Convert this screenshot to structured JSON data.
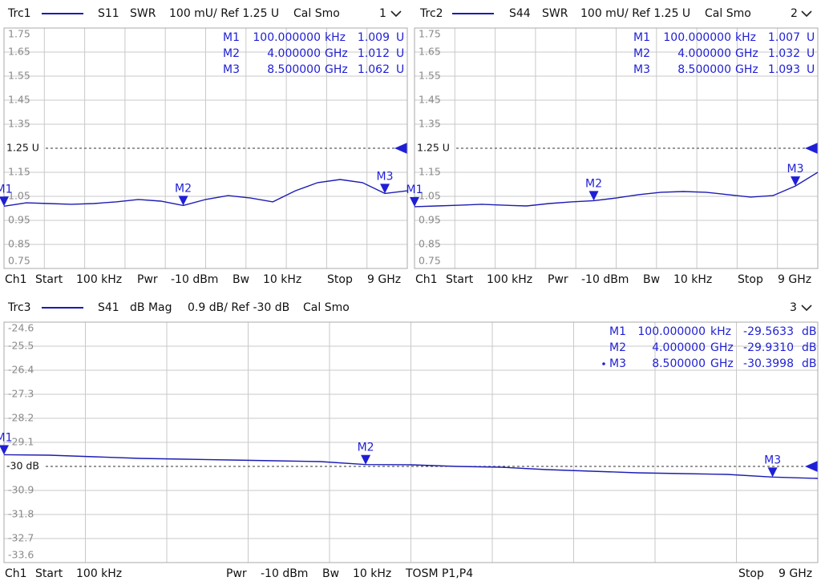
{
  "chart_data": [
    {
      "type": "line",
      "trace": "Trc1",
      "parameter": "S11",
      "format": "SWR",
      "scale": "100 mU/ Ref 1.25 U",
      "calibration": "Cal Smo",
      "window": "1",
      "color": "#1c1cb4",
      "grid": true,
      "x": [
        0.0001,
        0.5,
        1,
        1.5,
        2,
        2.5,
        3,
        3.5,
        4,
        4.5,
        5,
        5.5,
        6,
        6.5,
        7,
        7.5,
        8,
        8.5,
        9
      ],
      "values": [
        1.009,
        1.023,
        1.02,
        1.017,
        1.02,
        1.027,
        1.037,
        1.03,
        1.012,
        1.037,
        1.053,
        1.043,
        1.027,
        1.073,
        1.107,
        1.12,
        1.107,
        1.062,
        1.073
      ],
      "xlim": [
        0.0001,
        9
      ],
      "xticks": [
        0.0001,
        0.9,
        1.8,
        2.7,
        3.6,
        4.5,
        5.4,
        6.3,
        7.2,
        8.1,
        9
      ],
      "ylim": [
        0.75,
        1.75
      ],
      "yticks": [
        0.75,
        0.85,
        0.95,
        1.05,
        1.15,
        {
          "value": 1.25,
          "label": "1.25 U"
        },
        1.35,
        1.45,
        1.55,
        1.65,
        1.75
      ],
      "markers": [
        {
          "name": "M1",
          "x": 0.0001,
          "value": 1.009,
          "stimulus_label": "100.000000",
          "stimulus_unit": "kHz",
          "value_label": "1.009",
          "value_unit": "U"
        },
        {
          "name": "M2",
          "x": 4,
          "value": 1.012,
          "stimulus_label": "4.000000",
          "stimulus_unit": "GHz",
          "value_label": "1.012",
          "value_unit": "U"
        },
        {
          "name": "M3",
          "x": 8.5,
          "value": 1.062,
          "stimulus_label": "8.500000",
          "stimulus_unit": "GHz",
          "value_label": "1.062",
          "value_unit": "U"
        }
      ],
      "footer": [
        "Ch1",
        "Start",
        "100 kHz",
        "Pwr",
        "-10 dBm",
        "Bw",
        "10 kHz",
        "Stop",
        "9 GHz"
      ]
    },
    {
      "type": "line",
      "trace": "Trc2",
      "parameter": "S44",
      "format": "SWR",
      "scale": "100 mU/ Ref 1.25 U",
      "calibration": "Cal Smo",
      "window": "2",
      "color": "#1c1cb4",
      "grid": true,
      "x": [
        0.0001,
        0.5,
        1,
        1.5,
        2,
        2.5,
        3,
        3.5,
        4,
        4.5,
        5,
        5.5,
        6,
        6.5,
        7,
        7.5,
        8,
        8.5,
        9
      ],
      "values": [
        1.007,
        1.01,
        1.013,
        1.017,
        1.013,
        1.01,
        1.02,
        1.027,
        1.032,
        1.043,
        1.057,
        1.067,
        1.07,
        1.067,
        1.057,
        1.047,
        1.053,
        1.093,
        1.15
      ],
      "xlim": [
        0.0001,
        9
      ],
      "xticks": [
        0.0001,
        0.9,
        1.8,
        2.7,
        3.6,
        4.5,
        5.4,
        6.3,
        7.2,
        8.1,
        9
      ],
      "ylim": [
        0.75,
        1.75
      ],
      "yticks": [
        0.75,
        0.85,
        0.95,
        1.05,
        1.15,
        {
          "value": 1.25,
          "label": "1.25 U"
        },
        1.35,
        1.45,
        1.55,
        1.65,
        1.75
      ],
      "markers": [
        {
          "name": "M1",
          "x": 0.0001,
          "value": 1.007,
          "stimulus_label": "100.000000",
          "stimulus_unit": "kHz",
          "value_label": "1.007",
          "value_unit": "U"
        },
        {
          "name": "M2",
          "x": 4,
          "value": 1.032,
          "stimulus_label": "4.000000",
          "stimulus_unit": "GHz",
          "value_label": "1.032",
          "value_unit": "U"
        },
        {
          "name": "M3",
          "x": 8.5,
          "value": 1.093,
          "stimulus_label": "8.500000",
          "stimulus_unit": "GHz",
          "value_label": "1.093",
          "value_unit": "U"
        }
      ],
      "footer": [
        "Ch1",
        "Start",
        "100 kHz",
        "Pwr",
        "-10 dBm",
        "Bw",
        "10 kHz",
        "Stop",
        "9 GHz"
      ]
    },
    {
      "type": "line",
      "trace": "Trc3",
      "parameter": "S41",
      "format": "dB Mag",
      "scale": "0.9 dB/ Ref -30 dB",
      "calibration": "Cal Smo",
      "window": "3",
      "color": "#1c1cb4",
      "grid": true,
      "x": [
        0.0001,
        0.5,
        1,
        1.5,
        2,
        2.5,
        3,
        3.5,
        4,
        4.5,
        5,
        5.5,
        6,
        6.5,
        7,
        7.5,
        8,
        8.5,
        9
      ],
      "values": [
        -29.5633,
        -29.58,
        -29.64,
        -29.7,
        -29.73,
        -29.76,
        -29.79,
        -29.82,
        -29.931,
        -29.94,
        -30.0,
        -30.03,
        -30.12,
        -30.18,
        -30.24,
        -30.27,
        -30.3,
        -30.3998,
        -30.45
      ],
      "xlim": [
        0.0001,
        9
      ],
      "xticks": [
        0.0001,
        0.9,
        1.8,
        2.7,
        3.6,
        4.5,
        5.4,
        6.3,
        7.2,
        8.1,
        9
      ],
      "ylim": [
        -33.6,
        -24.6
      ],
      "yticks": [
        -33.6,
        -32.7,
        -31.8,
        -30.9,
        {
          "value": -30,
          "label": "-30 dB"
        },
        -29.1,
        -28.2,
        -27.3,
        -26.4,
        -25.5,
        -24.6
      ],
      "markers": [
        {
          "name": "M1",
          "x": 0.0001,
          "value": -29.5633,
          "stimulus_label": "100.000000",
          "stimulus_unit": "kHz",
          "value_label": "-29.5633",
          "value_unit": "dB"
        },
        {
          "name": "M2",
          "x": 4,
          "value": -29.931,
          "stimulus_label": "4.000000",
          "stimulus_unit": "GHz",
          "value_label": "-29.9310",
          "value_unit": "dB"
        },
        {
          "name": "M3",
          "x": 8.5,
          "value": -30.3998,
          "stimulus_label": "8.500000",
          "stimulus_unit": "GHz",
          "value_label": "-30.3998",
          "value_unit": "dB",
          "active": true
        }
      ],
      "footer": [
        "Ch1",
        "Start",
        "100 kHz",
        "Pwr",
        "-10 dBm",
        "Bw",
        "10 kHz",
        "TOSM P1,P4",
        "Stop",
        "9 GHz"
      ]
    }
  ]
}
